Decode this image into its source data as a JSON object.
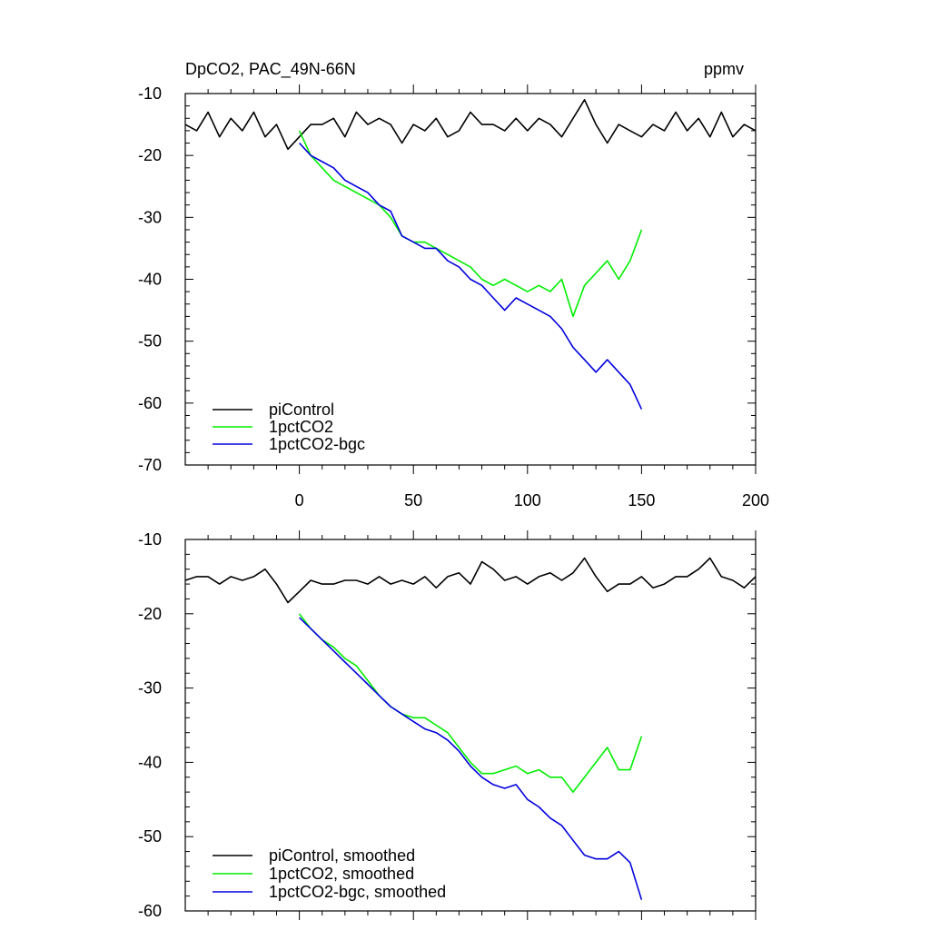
{
  "chart_data": [
    {
      "type": "line",
      "title": "DpCO2, PAC_49N-66N",
      "units": "ppmv",
      "xlabel": "",
      "ylabel": "",
      "xlim": [
        -50,
        200
      ],
      "ylim": [
        -70,
        -10
      ],
      "xticks": [
        0,
        50,
        100,
        150,
        200
      ],
      "xtick_labels": [
        "0",
        "50",
        "100",
        "150",
        "200"
      ],
      "yticks": [
        -10,
        -20,
        -30,
        -40,
        -50,
        -60,
        -70
      ],
      "ytick_labels": [
        "-10",
        "-20",
        "-30",
        "-40",
        "-50",
        "-60",
        "-70"
      ],
      "grid": false,
      "legend_position": "bottom-left",
      "series": [
        {
          "name": "piControl",
          "color": "#000000",
          "x": [
            -50,
            -45,
            -40,
            -35,
            -30,
            -25,
            -20,
            -15,
            -10,
            -5,
            0,
            5,
            10,
            15,
            20,
            25,
            30,
            35,
            40,
            45,
            50,
            55,
            60,
            65,
            70,
            75,
            80,
            85,
            90,
            95,
            100,
            105,
            110,
            115,
            120,
            125,
            130,
            135,
            140,
            145,
            150,
            155,
            160,
            165,
            170,
            175,
            180,
            185,
            190,
            195,
            200
          ],
          "values": [
            -15,
            -16,
            -13,
            -17,
            -14,
            -16,
            -13,
            -17,
            -15,
            -19,
            -17,
            -15,
            -15,
            -14,
            -17,
            -13,
            -15,
            -14,
            -15,
            -18,
            -15,
            -16,
            -14,
            -17,
            -16,
            -13,
            -15,
            -15,
            -16,
            -14,
            -16,
            -14,
            -15,
            -17,
            -14,
            -11,
            -15,
            -18,
            -15,
            -16,
            -17,
            -15,
            -16,
            -13,
            -16,
            -14,
            -17,
            -13,
            -17,
            -15,
            -16
          ]
        },
        {
          "name": "1pctCO2",
          "color": "#00ee00",
          "x": [
            0,
            5,
            10,
            15,
            20,
            25,
            30,
            35,
            40,
            45,
            50,
            55,
            60,
            65,
            70,
            75,
            80,
            85,
            90,
            95,
            100,
            105,
            110,
            115,
            120,
            125,
            130,
            135,
            140,
            145,
            150
          ],
          "values": [
            -16,
            -20,
            -22,
            -24,
            -25,
            -26,
            -27,
            -28,
            -30,
            -33,
            -34,
            -34,
            -35,
            -36,
            -37,
            -38,
            -40,
            -41,
            -40,
            -41,
            -42,
            -41,
            -42,
            -40,
            -46,
            -41,
            -39,
            -37,
            -40,
            -37,
            -32
          ]
        },
        {
          "name": "1pctCO2-bgc",
          "color": "#0000dd",
          "x": [
            0,
            5,
            10,
            15,
            20,
            25,
            30,
            35,
            40,
            45,
            50,
            55,
            60,
            65,
            70,
            75,
            80,
            85,
            90,
            95,
            100,
            105,
            110,
            115,
            120,
            125,
            130,
            135,
            140,
            145,
            150
          ],
          "values": [
            -18,
            -20,
            -21,
            -22,
            -24,
            -25,
            -26,
            -28,
            -29,
            -33,
            -34,
            -35,
            -35,
            -37,
            -38,
            -40,
            -41,
            -43,
            -45,
            -43,
            -44,
            -45,
            -46,
            -48,
            -51,
            -53,
            -55,
            -53,
            -55,
            -57,
            -61
          ]
        }
      ]
    },
    {
      "type": "line",
      "title": "",
      "xlabel": "",
      "ylabel": "",
      "xlim": [
        -50,
        200
      ],
      "ylim": [
        -60,
        -10
      ],
      "xticks": [
        0,
        50,
        100,
        150,
        200
      ],
      "xtick_labels": [],
      "yticks": [
        -10,
        -20,
        -30,
        -40,
        -50,
        -60
      ],
      "ytick_labels": [
        "-10",
        "-20",
        "-30",
        "-40",
        "-50",
        "-60"
      ],
      "grid": false,
      "legend_position": "bottom-left",
      "series": [
        {
          "name": "piControl, smoothed",
          "color": "#000000",
          "x": [
            -50,
            -45,
            -40,
            -35,
            -30,
            -25,
            -20,
            -15,
            -10,
            -5,
            0,
            5,
            10,
            15,
            20,
            25,
            30,
            35,
            40,
            45,
            50,
            55,
            60,
            65,
            70,
            75,
            80,
            85,
            90,
            95,
            100,
            105,
            110,
            115,
            120,
            125,
            130,
            135,
            140,
            145,
            150,
            155,
            160,
            165,
            170,
            175,
            180,
            185,
            190,
            195,
            200
          ],
          "values": [
            -15.5,
            -15,
            -15,
            -16,
            -15,
            -15.5,
            -15,
            -14,
            -16,
            -18.5,
            -17,
            -15.5,
            -16,
            -16,
            -15.5,
            -15.5,
            -16,
            -15,
            -16,
            -15.5,
            -16,
            -15,
            -16.5,
            -15,
            -14.5,
            -16,
            -13,
            -14,
            -15.5,
            -15,
            -16,
            -15,
            -14.5,
            -15.5,
            -14.5,
            -12.5,
            -15,
            -17,
            -16,
            -16,
            -15,
            -16.5,
            -16,
            -15,
            -15,
            -14,
            -12.5,
            -15,
            -15.5,
            -16.5,
            -15
          ]
        },
        {
          "name": "1pctCO2, smoothed",
          "color": "#00ee00",
          "x": [
            0,
            5,
            10,
            15,
            20,
            25,
            30,
            35,
            40,
            45,
            50,
            55,
            60,
            65,
            70,
            75,
            80,
            85,
            90,
            95,
            100,
            105,
            110,
            115,
            120,
            125,
            130,
            135,
            140,
            145,
            150
          ],
          "values": [
            -20,
            -22,
            -23.5,
            -24.5,
            -26,
            -27,
            -29,
            -31,
            -32.5,
            -33.5,
            -34,
            -34,
            -35,
            -36,
            -38,
            -40,
            -41.5,
            -41.5,
            -41,
            -40.5,
            -41.5,
            -41,
            -42,
            -42,
            -44,
            -42,
            -40,
            -38,
            -41,
            -41,
            -36.5
          ]
        },
        {
          "name": "1pctCO2-bgc, smoothed",
          "color": "#0000dd",
          "x": [
            0,
            5,
            10,
            15,
            20,
            25,
            30,
            35,
            40,
            45,
            50,
            55,
            60,
            65,
            70,
            75,
            80,
            85,
            90,
            95,
            100,
            105,
            110,
            115,
            120,
            125,
            130,
            135,
            140,
            145,
            150
          ],
          "values": [
            -20.5,
            -22,
            -23.5,
            -25,
            -26.5,
            -28,
            -29.5,
            -31,
            -32.5,
            -33.5,
            -34.5,
            -35.5,
            -36,
            -37,
            -38.5,
            -40.5,
            -42,
            -43,
            -43.5,
            -43,
            -45,
            -46,
            -47.5,
            -48.5,
            -50.5,
            -52.5,
            -53,
            -53,
            -52,
            -53.5,
            -58.5
          ]
        }
      ]
    }
  ]
}
